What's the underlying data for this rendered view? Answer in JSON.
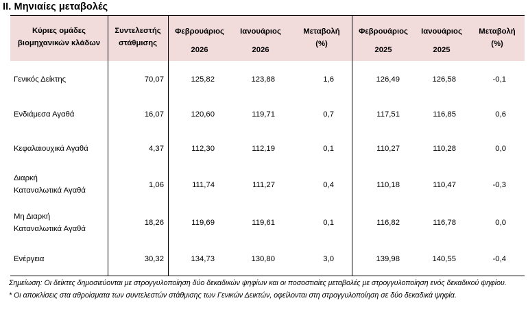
{
  "title": "ΙΙ. Μηνιαίες μεταβολές",
  "headers": {
    "groups": [
      "Κύριες ομάδες",
      "βιομηχανικών κλάδων"
    ],
    "weight": [
      "Συντελεστής",
      "στάθμισης"
    ],
    "feb2026": [
      "Φεβρουάριος",
      "2026"
    ],
    "jan2026": [
      "Ιανουάριος",
      "2026"
    ],
    "change1": [
      "Μεταβολή",
      "(%)"
    ],
    "feb2025": [
      "Φεβρουάριος",
      "2025"
    ],
    "jan2025": [
      "Ιανουάριος",
      "2025"
    ],
    "change2": [
      "Μεταβολή",
      "(%)"
    ]
  },
  "rows": [
    {
      "label": [
        "Γενικός Δείκτης"
      ],
      "weight": "70,07",
      "feb2026": "125,82",
      "jan2026": "123,88",
      "change1": "1,6",
      "feb2025": "126,49",
      "jan2025": "126,58",
      "change2": "-0,1"
    },
    {
      "label": [
        "Ενδιάμεσα Αγαθά"
      ],
      "weight": "16,07",
      "feb2026": "120,60",
      "jan2026": "119,71",
      "change1": "0,7",
      "feb2025": "117,51",
      "jan2025": "116,85",
      "change2": "0,6"
    },
    {
      "label": [
        "Κεφαλαιουχικά Αγαθά"
      ],
      "weight": "4,37",
      "feb2026": "112,30",
      "jan2026": "112,19",
      "change1": "0,1",
      "feb2025": "110,27",
      "jan2025": "110,28",
      "change2": "0,0"
    },
    {
      "label": [
        "Διαρκή",
        "Καταναλωτικά Αγαθά"
      ],
      "weight": "1,06",
      "feb2026": "111,74",
      "jan2026": "111,27",
      "change1": "0,4",
      "feb2025": "110,18",
      "jan2025": "110,47",
      "change2": "-0,3"
    },
    {
      "label": [
        "Μη Διαρκή",
        "Καταναλωτικά Αγαθά"
      ],
      "weight": "18,26",
      "feb2026": "119,69",
      "jan2026": "119,61",
      "change1": "0,1",
      "feb2025": "116,82",
      "jan2025": "116,78",
      "change2": "0,0"
    },
    {
      "label": [
        "Ενέργεια"
      ],
      "weight": "30,32",
      "feb2026": "134,73",
      "jan2026": "130,80",
      "change1": "3,0",
      "feb2025": "139,98",
      "jan2025": "140,55",
      "change2": "-0,4"
    }
  ],
  "notes": [
    "Σημείωση: Οι δείκτες δημοσιεύονται με στρογγυλοποίηση δύο δεκαδικών ψηφίων και οι ποσοστιαίες μεταβολές με στρογγυλοποίηση ενός δεκαδικού ψηφίου.",
    "* Οι αποκλίσεις στα αθροίσματα των συντελεστών στάθμισης των Γενικών Δεικτών, οφείλονται στη στρογγυλοποίηση σε δύο δεκαδικά ψηφία."
  ]
}
